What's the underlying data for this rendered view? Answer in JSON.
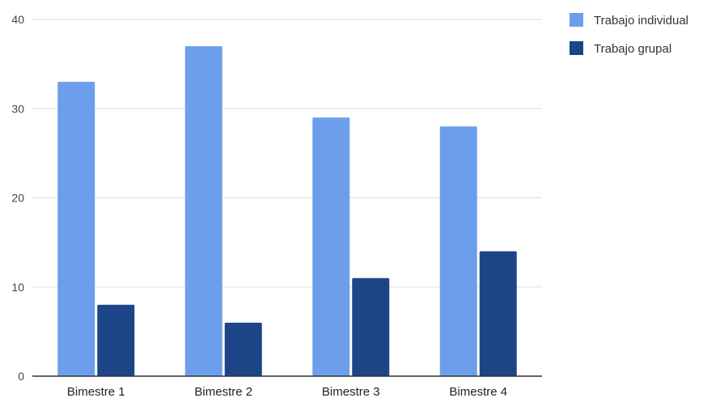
{
  "chart_data": {
    "type": "bar",
    "categories": [
      "Bimestre 1",
      "Bimestre 2",
      "Bimestre 3",
      "Bimestre 4"
    ],
    "series": [
      {
        "name": "Trabajo individual",
        "values": [
          33,
          37,
          29,
          28
        ],
        "color": "#6d9eeb"
      },
      {
        "name": "Trabajo grupal",
        "values": [
          8,
          6,
          11,
          14
        ],
        "color": "#1c4587"
      }
    ],
    "y_ticks": [
      0,
      10,
      20,
      30,
      40
    ],
    "ylim": [
      0,
      40
    ],
    "grid": true,
    "legend": "top-right",
    "title": "",
    "xlabel": "",
    "ylabel": ""
  }
}
